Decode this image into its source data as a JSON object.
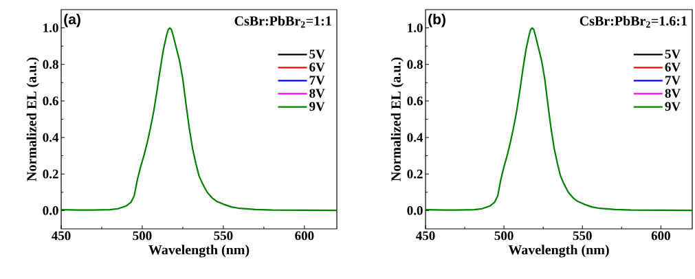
{
  "chart_data": [
    {
      "type": "line",
      "annotations": [
        "(a)",
        "CsBr:PbBr$_{2}$=1:1"
      ],
      "xlabel": "Wavelength (nm)",
      "ylabel": "Normalized EL (a.u.)",
      "x": [
        450,
        460,
        470,
        480,
        485,
        490,
        493,
        495,
        497,
        499,
        501,
        503,
        505,
        507,
        509,
        511,
        513,
        515,
        516,
        517,
        518,
        519,
        521,
        523,
        525,
        527,
        529,
        531,
        533,
        535,
        537,
        540,
        543,
        546,
        550,
        555,
        560,
        570,
        580,
        600,
        620
      ],
      "series": [
        {
          "name": "5V",
          "color": "#000000",
          "values": [
            null,
            null,
            null,
            null,
            null,
            null,
            null,
            null,
            null,
            null,
            null,
            null,
            null,
            null,
            null,
            null,
            null,
            null,
            null,
            null,
            null,
            null,
            null,
            null,
            null,
            null,
            null,
            null,
            null,
            null,
            null,
            null,
            null,
            null,
            null,
            null,
            null,
            null,
            null,
            null,
            null
          ]
        },
        {
          "name": "6V",
          "color": "#ff0000",
          "values": [
            null,
            null,
            null,
            null,
            null,
            null,
            null,
            null,
            null,
            null,
            null,
            null,
            null,
            null,
            null,
            null,
            null,
            null,
            null,
            null,
            null,
            null,
            null,
            null,
            null,
            null,
            null,
            null,
            null,
            null,
            null,
            null,
            null,
            null,
            null,
            null,
            null,
            null,
            null,
            null,
            null
          ]
        },
        {
          "name": "7V",
          "color": "#0000ff",
          "values": [
            null,
            null,
            null,
            null,
            null,
            null,
            null,
            null,
            null,
            null,
            null,
            null,
            null,
            null,
            null,
            null,
            null,
            null,
            null,
            null,
            null,
            null,
            null,
            null,
            null,
            null,
            null,
            null,
            null,
            null,
            null,
            null,
            null,
            null,
            null,
            null,
            null,
            null,
            null,
            null,
            null
          ]
        },
        {
          "name": "8V",
          "color": "#ff00ff",
          "values": [
            null,
            null,
            null,
            null,
            null,
            null,
            null,
            null,
            null,
            null,
            null,
            null,
            null,
            null,
            null,
            null,
            null,
            null,
            null,
            null,
            null,
            null,
            null,
            null,
            null,
            null,
            null,
            null,
            null,
            null,
            null,
            null,
            null,
            null,
            null,
            null,
            null,
            null,
            null,
            null,
            null
          ]
        },
        {
          "name": "9V",
          "color": "#008000",
          "values": [
            0.005,
            0.003,
            0.003,
            0.005,
            0.01,
            0.025,
            0.045,
            0.08,
            0.17,
            0.24,
            0.3,
            0.37,
            0.45,
            0.54,
            0.65,
            0.77,
            0.88,
            0.96,
            0.99,
            1.0,
            0.99,
            0.96,
            0.89,
            0.82,
            0.72,
            0.58,
            0.45,
            0.34,
            0.26,
            0.19,
            0.15,
            0.1,
            0.07,
            0.05,
            0.035,
            0.02,
            0.012,
            0.006,
            0.003,
            0.002,
            0.001
          ]
        }
      ],
      "xlim": [
        450,
        620
      ],
      "ylim": [
        -0.1,
        1.1
      ],
      "xticks": [
        450,
        500,
        550,
        600
      ],
      "yticks": [
        {
          "value": 0,
          "label": "0.0"
        },
        {
          "value": 0.2,
          "label": "0.2"
        },
        {
          "value": 0.4,
          "label": "0.4"
        },
        {
          "value": 0.6,
          "label": "0.6"
        },
        {
          "value": 0.8,
          "label": "0.8"
        },
        {
          "value": 1,
          "label": "1.0"
        }
      ],
      "legend": "top right"
    },
    {
      "type": "line",
      "annotations": [
        "(b)",
        "CsBr:PbBr$_{2}$=1.6:1"
      ],
      "xlabel": "Wavelength (nm)",
      "ylabel": "Normalized EL (a.u.)",
      "x": [
        450,
        461,
        471,
        481,
        486,
        491,
        494,
        496,
        498,
        500,
        502,
        504,
        506,
        508,
        510,
        512,
        514,
        516,
        517,
        518,
        519,
        520,
        522,
        524,
        526,
        528,
        530,
        532,
        534,
        536,
        538,
        541,
        544,
        547,
        551,
        556,
        561,
        571,
        581,
        601,
        620
      ],
      "series": [
        {
          "name": "5V",
          "color": "#000000",
          "values": [
            null,
            null,
            null,
            null,
            null,
            null,
            null,
            null,
            null,
            null,
            null,
            null,
            null,
            null,
            null,
            null,
            null,
            null,
            null,
            null,
            null,
            null,
            null,
            null,
            null,
            null,
            null,
            null,
            null,
            null,
            null,
            null,
            null,
            null,
            null,
            null,
            null,
            null,
            null,
            null,
            null
          ]
        },
        {
          "name": "6V",
          "color": "#ff0000",
          "values": [
            null,
            null,
            null,
            null,
            null,
            null,
            null,
            null,
            null,
            null,
            null,
            null,
            null,
            null,
            null,
            null,
            null,
            null,
            null,
            null,
            null,
            null,
            null,
            null,
            null,
            null,
            null,
            null,
            null,
            null,
            null,
            null,
            null,
            null,
            null,
            null,
            null,
            null,
            null,
            null,
            null
          ]
        },
        {
          "name": "7V",
          "color": "#0000ff",
          "values": [
            null,
            null,
            null,
            null,
            null,
            null,
            null,
            null,
            null,
            null,
            null,
            null,
            null,
            null,
            null,
            null,
            null,
            null,
            null,
            null,
            null,
            null,
            null,
            null,
            null,
            null,
            null,
            null,
            null,
            null,
            null,
            null,
            null,
            null,
            null,
            null,
            null,
            null,
            null,
            null,
            null
          ]
        },
        {
          "name": "8V",
          "color": "#ff00ff",
          "values": [
            null,
            null,
            null,
            null,
            null,
            null,
            null,
            null,
            null,
            null,
            null,
            null,
            null,
            null,
            null,
            null,
            null,
            null,
            null,
            null,
            null,
            null,
            null,
            null,
            null,
            null,
            null,
            null,
            null,
            null,
            null,
            null,
            null,
            null,
            null,
            null,
            null,
            null,
            null,
            null,
            null
          ]
        },
        {
          "name": "9V",
          "color": "#008000",
          "values": [
            0.005,
            0.003,
            0.003,
            0.005,
            0.01,
            0.025,
            0.045,
            0.08,
            0.17,
            0.24,
            0.3,
            0.37,
            0.45,
            0.54,
            0.65,
            0.77,
            0.88,
            0.96,
            0.99,
            1.0,
            0.99,
            0.96,
            0.89,
            0.82,
            0.72,
            0.58,
            0.45,
            0.34,
            0.26,
            0.19,
            0.15,
            0.1,
            0.07,
            0.05,
            0.035,
            0.02,
            0.012,
            0.006,
            0.003,
            0.002,
            0.001
          ]
        }
      ],
      "xlim": [
        450,
        620
      ],
      "ylim": [
        -0.1,
        1.1
      ],
      "xticks": [
        450,
        500,
        550,
        600
      ],
      "yticks": [
        {
          "value": 0,
          "label": "0.0"
        },
        {
          "value": 0.2,
          "label": "0.2"
        },
        {
          "value": 0.4,
          "label": "0.4"
        },
        {
          "value": 0.6,
          "label": "0.6"
        },
        {
          "value": 0.8,
          "label": "0.8"
        },
        {
          "value": 1,
          "label": "1.0"
        }
      ],
      "legend": "top right"
    }
  ]
}
